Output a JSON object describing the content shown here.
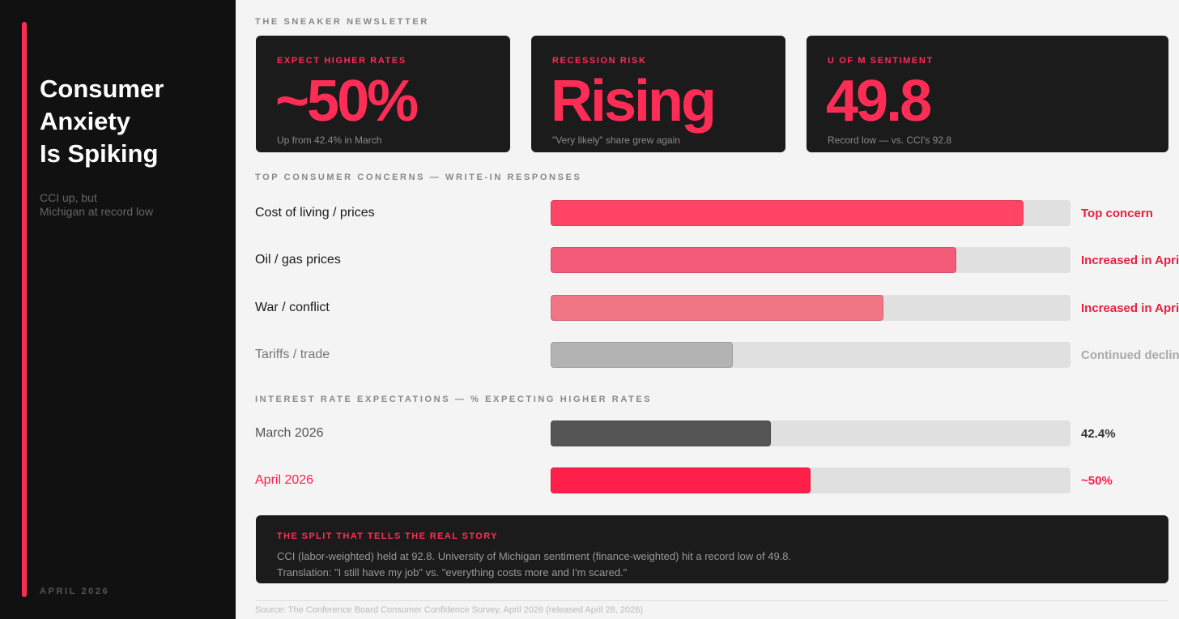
{
  "sidebar": {
    "title_lines": [
      "Consumer",
      "Anxiety",
      "Is Spiking"
    ],
    "subtitle_lines": [
      "CCI up, but",
      "Michigan at record low"
    ],
    "footer": "APRIL 2026"
  },
  "header": "THE SNEAKER NEWSLETTER",
  "cards": [
    {
      "label": "EXPECT HIGHER RATES",
      "value": "~50%",
      "note": "Up from 42.4% in March"
    },
    {
      "label": "RECESSION RISK",
      "value": "Rising",
      "note": "\"Very likely\" share grew again"
    },
    {
      "label": "U OF M SENTIMENT",
      "value": "49.8",
      "note": "Record low — vs. CCI's 92.8"
    }
  ],
  "chart_data": [
    {
      "type": "bar",
      "title": "TOP CONSUMER CONCERNS — WRITE-IN RESPONSES",
      "categories": [
        "Cost of living / prices",
        "Oil / gas prices",
        "War / conflict",
        "Tariffs / trade"
      ],
      "values": [
        91,
        78,
        64,
        35
      ],
      "colors": [
        "#ff4466",
        "#f25c78",
        "#f07585",
        "#b3b3b3"
      ],
      "annotations": [
        "Top concern",
        "Increased in April",
        "Increased in April",
        "Continued declining"
      ],
      "xlim": [
        0,
        100
      ]
    },
    {
      "type": "bar",
      "title": "INTEREST RATE EXPECTATIONS — % EXPECTING HIGHER RATES",
      "categories": [
        "March 2026",
        "April 2026"
      ],
      "values": [
        42.4,
        50
      ],
      "value_labels": [
        "42.4%",
        "~50%"
      ],
      "colors": [
        "#555555",
        "#ff1f4b"
      ],
      "xlim": [
        0,
        100
      ]
    }
  ],
  "callout": {
    "title": "THE SPLIT THAT TELLS THE REAL STORY",
    "lines": [
      "CCI (labor-weighted) held at 92.8. University of Michigan sentiment (finance-weighted) hit a record low of 49.8.",
      "Translation: \"I still have my job\" vs. \"everything costs more and I'm scared.\""
    ]
  },
  "source": "Source: The Conference Board Consumer Confidence Survey, April 2026 (released April 28, 2026)"
}
